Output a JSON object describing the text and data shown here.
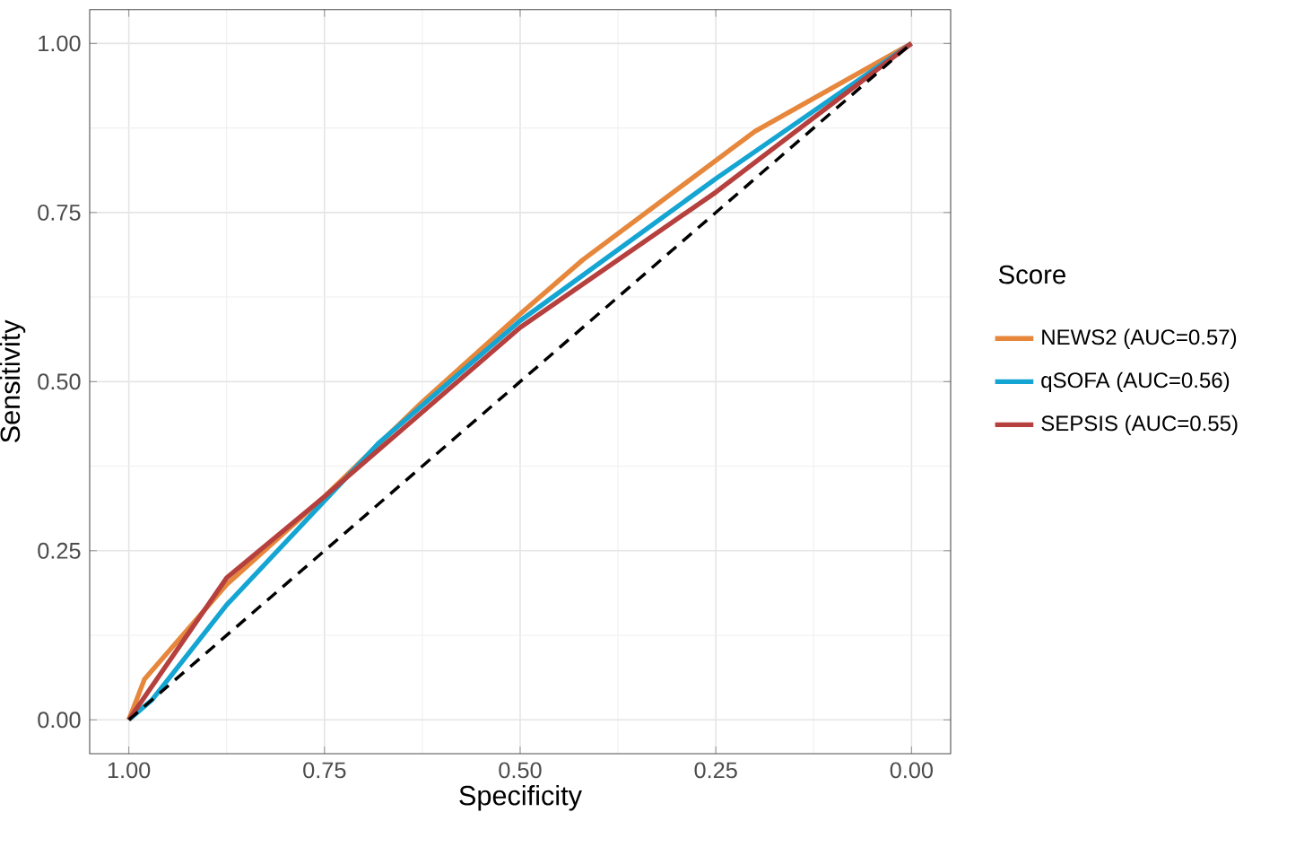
{
  "chart_data": {
    "type": "line",
    "xlabel": "Specificity",
    "ylabel": "Sensitivity",
    "legend_title": "Score",
    "xlim": [
      1.05,
      -0.05
    ],
    "ylim": [
      -0.05,
      1.05
    ],
    "xticks": [
      {
        "value": 1,
        "label": "1.00"
      },
      {
        "value": 0.75,
        "label": "0.75"
      },
      {
        "value": 0.5,
        "label": "0.50"
      },
      {
        "value": 0.25,
        "label": "0.25"
      },
      {
        "value": 0,
        "label": "0.00"
      }
    ],
    "yticks": [
      {
        "value": 0,
        "label": "0.00"
      },
      {
        "value": 0.25,
        "label": "0.25"
      },
      {
        "value": 0.5,
        "label": "0.50"
      },
      {
        "value": 0.75,
        "label": "0.75"
      },
      {
        "value": 1,
        "label": "1.00"
      }
    ],
    "grid": true,
    "legend": "right",
    "marker": "none",
    "series": [
      {
        "name": "NEWS2 (AUC=0.57)",
        "color": "#e6873c",
        "x": [
          1,
          0.98,
          0.875,
          0.75,
          0.625,
          0.5,
          0.42,
          0.2,
          0
        ],
        "values": [
          0,
          0.06,
          0.2,
          0.33,
          0.47,
          0.6,
          0.68,
          0.87,
          1
        ]
      },
      {
        "name": "qSOFA (AUC=0.56)",
        "color": "#14a5d2",
        "x": [
          1,
          0.97,
          0.875,
          0.68,
          0.5,
          0.25,
          0
        ],
        "values": [
          0,
          0.03,
          0.17,
          0.41,
          0.59,
          0.8,
          1
        ]
      },
      {
        "name": "SEPSIS (AUC=0.55)",
        "color": "#b5403e",
        "x": [
          1,
          0.875,
          0.75,
          0.5,
          0.25,
          0
        ],
        "values": [
          0,
          0.21,
          0.33,
          0.58,
          0.78,
          1
        ]
      },
      {
        "color": "#000000",
        "line_style": "dashed",
        "x": [
          1,
          0
        ],
        "values": [
          0,
          1
        ]
      }
    ]
  }
}
